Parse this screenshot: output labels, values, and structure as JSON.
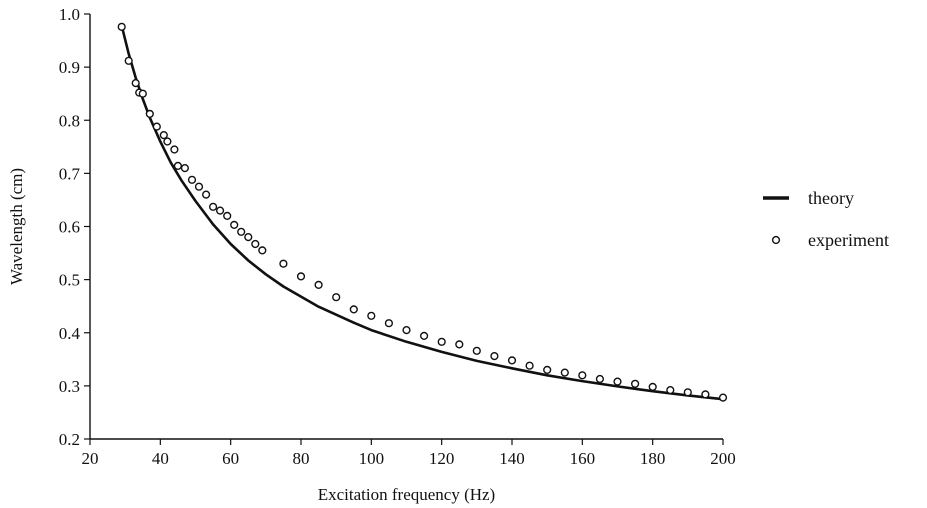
{
  "chart_data": {
    "type": "line",
    "title": "",
    "xlabel": "Excitation frequency (Hz)",
    "ylabel": "Wavelength (cm)",
    "xlim": [
      20,
      200
    ],
    "ylim": [
      0.2,
      1.0
    ],
    "x_ticks": [
      20,
      40,
      60,
      80,
      100,
      120,
      140,
      160,
      180,
      200
    ],
    "x_tick_labels": [
      "20",
      "40",
      "60",
      "80",
      "100",
      "120",
      "140",
      "160",
      "180",
      "200"
    ],
    "y_ticks": [
      0.2,
      0.3,
      0.4,
      0.5,
      0.6,
      0.7,
      0.8,
      0.9,
      1.0
    ],
    "y_tick_labels": [
      "0.2",
      "0.3",
      "0.4",
      "0.5",
      "0.6",
      "0.7",
      "0.8",
      "0.9",
      "1.0"
    ],
    "grid": false,
    "legend_position": "right",
    "series": [
      {
        "name": "theory",
        "style": "solid-line",
        "color": "#111111",
        "x": [
          29,
          31,
          33,
          35,
          37,
          40,
          43,
          46,
          50,
          55,
          60,
          65,
          70,
          75,
          80,
          85,
          90,
          95,
          100,
          110,
          120,
          130,
          140,
          150,
          160,
          170,
          180,
          190,
          200
        ],
        "y": [
          0.978,
          0.925,
          0.88,
          0.84,
          0.805,
          0.76,
          0.72,
          0.687,
          0.648,
          0.604,
          0.567,
          0.536,
          0.51,
          0.487,
          0.468,
          0.449,
          0.434,
          0.419,
          0.405,
          0.383,
          0.364,
          0.347,
          0.333,
          0.32,
          0.309,
          0.299,
          0.29,
          0.282,
          0.275
        ]
      },
      {
        "name": "experiment",
        "style": "open-circle-marker",
        "color": "#111111",
        "x": [
          29,
          31,
          33,
          34,
          35,
          37,
          39,
          41,
          42,
          44,
          45,
          47,
          49,
          51,
          53,
          55,
          57,
          59,
          61,
          63,
          65,
          67,
          69,
          75,
          80,
          85,
          90,
          95,
          100,
          105,
          110,
          115,
          120,
          125,
          130,
          135,
          140,
          145,
          150,
          155,
          160,
          165,
          170,
          175,
          180,
          185,
          190,
          195,
          200
        ],
        "y": [
          0.976,
          0.912,
          0.87,
          0.852,
          0.85,
          0.812,
          0.788,
          0.772,
          0.76,
          0.745,
          0.714,
          0.71,
          0.688,
          0.675,
          0.66,
          0.637,
          0.63,
          0.62,
          0.603,
          0.59,
          0.58,
          0.567,
          0.555,
          0.53,
          0.506,
          0.49,
          0.467,
          0.444,
          0.432,
          0.418,
          0.405,
          0.394,
          0.383,
          0.378,
          0.366,
          0.356,
          0.348,
          0.338,
          0.33,
          0.325,
          0.32,
          0.313,
          0.308,
          0.304,
          0.298,
          0.292,
          0.288,
          0.284,
          0.278
        ]
      }
    ]
  }
}
